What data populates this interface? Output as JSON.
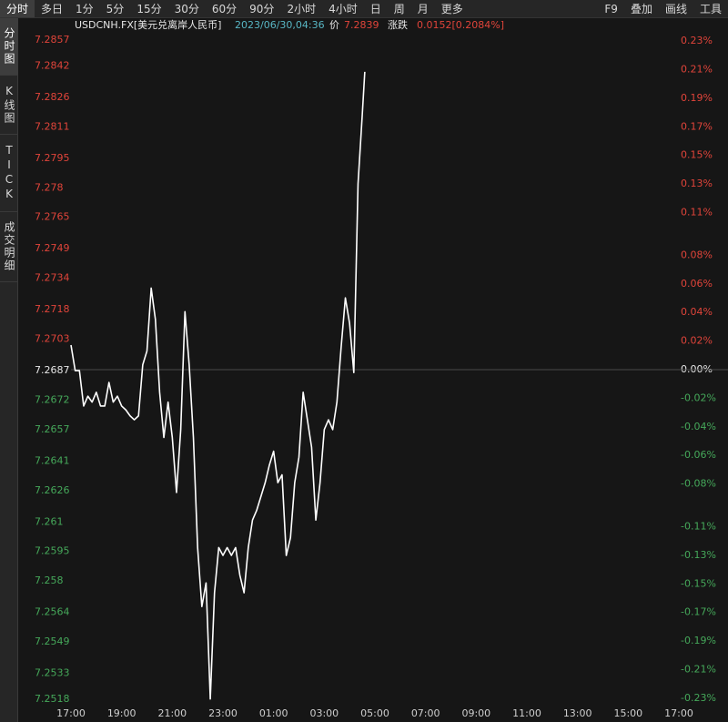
{
  "toolbar": {
    "tabs": [
      "分时",
      "多日",
      "1分",
      "5分",
      "15分",
      "30分",
      "60分",
      "90分",
      "2小时",
      "4小时",
      "日",
      "周",
      "月",
      "更多"
    ],
    "selected": 0,
    "tools": [
      "F9",
      "叠加",
      "画线",
      "工具"
    ]
  },
  "sidebar": {
    "tabs": [
      "分时图",
      "K线图",
      "TICK",
      "成交明细"
    ],
    "selected": 0
  },
  "header": {
    "symbol": "USDCNH.FX[美元兑离岸人民币]",
    "datetime": "2023/06/30,04:36",
    "price_label": "价",
    "price": "7.2839",
    "change_label": "涨跌",
    "change": "0.0152[0.2084%]"
  },
  "chart_data": {
    "type": "line",
    "x": [
      "17:00",
      "17:10",
      "17:20",
      "17:30",
      "17:40",
      "17:50",
      "18:00",
      "18:10",
      "18:20",
      "18:30",
      "18:40",
      "18:50",
      "19:00",
      "19:10",
      "19:20",
      "19:30",
      "19:40",
      "19:50",
      "20:00",
      "20:10",
      "20:20",
      "20:30",
      "20:40",
      "20:50",
      "21:00",
      "21:10",
      "21:20",
      "21:30",
      "21:40",
      "21:50",
      "22:00",
      "22:10",
      "22:20",
      "22:30",
      "22:40",
      "22:50",
      "23:00",
      "23:10",
      "23:20",
      "23:30",
      "23:40",
      "23:50",
      "00:00",
      "00:10",
      "00:20",
      "00:30",
      "00:40",
      "00:50",
      "01:00",
      "01:10",
      "01:20",
      "01:30",
      "01:40",
      "01:50",
      "02:00",
      "02:10",
      "02:20",
      "02:30",
      "02:40",
      "02:50",
      "03:00",
      "03:10",
      "03:20",
      "03:30",
      "03:40",
      "03:50",
      "04:00",
      "04:10",
      "04:20",
      "04:30",
      "04:36"
    ],
    "series": [
      {
        "color": "#ffffff",
        "values": [
          7.27,
          7.2687,
          7.2687,
          7.2669,
          7.2674,
          7.2671,
          7.2676,
          7.2669,
          7.2669,
          7.2681,
          7.2671,
          7.2674,
          7.2669,
          7.2667,
          7.2664,
          7.2662,
          7.2664,
          7.269,
          7.2697,
          7.2729,
          7.2713,
          7.2676,
          7.2653,
          7.2671,
          7.2653,
          7.2625,
          7.2657,
          7.2717,
          7.269,
          7.2653,
          7.2597,
          7.2567,
          7.2579,
          7.252,
          7.2574,
          7.2597,
          7.2593,
          7.2597,
          7.2593,
          7.2597,
          7.2583,
          7.2574,
          7.2597,
          7.2611,
          7.2616,
          7.2623,
          7.263,
          7.2639,
          7.2646,
          7.263,
          7.2634,
          7.2593,
          7.2602,
          7.263,
          7.2643,
          7.2676,
          7.2662,
          7.2648,
          7.2611,
          7.263,
          7.2657,
          7.2662,
          7.2657,
          7.2671,
          7.2699,
          7.2724,
          7.2711,
          7.2686,
          7.2782,
          7.2817,
          7.2839
        ]
      }
    ],
    "xticks": [
      "17:00",
      "19:00",
      "21:00",
      "23:00",
      "01:00",
      "03:00",
      "05:00",
      "07:00",
      "09:00",
      "11:00",
      "13:00",
      "15:00",
      "17:00"
    ],
    "ylim": [
      7.2518,
      7.2857
    ],
    "yticks": [
      7.2857,
      7.2842,
      7.2826,
      7.2811,
      7.2795,
      7.278,
      7.2765,
      7.2749,
      7.2734,
      7.2718,
      7.2703,
      {
        "value": 7.2687,
        "label": "7.2687"
      },
      7.2672,
      7.2657,
      7.2641,
      7.2626,
      7.261,
      7.2595,
      7.258,
      7.2564,
      7.2549,
      7.2533,
      7.2518
    ],
    "y2lim": [
      -0.2333,
      0.2333
    ],
    "y2ticks": [
      {
        "value": 0.23,
        "label": "0.23%"
      },
      {
        "value": 0.21,
        "label": "0.21%"
      },
      {
        "value": 0.19,
        "label": "0.19%"
      },
      {
        "value": 0.17,
        "label": "0.17%"
      },
      {
        "value": 0.15,
        "label": "0.15%"
      },
      {
        "value": 0.13,
        "label": "0.13%"
      },
      {
        "value": 0.11,
        "label": "0.11%"
      },
      {
        "value": 0.08,
        "label": "0.08%"
      },
      {
        "value": 0.06,
        "label": "0.06%"
      },
      {
        "value": 0.04,
        "label": "0.04%"
      },
      {
        "value": 0.02,
        "label": "0.02%"
      },
      {
        "value": 0,
        "label": "0.00%"
      },
      {
        "value": -0.02,
        "label": "-0.02%"
      },
      {
        "value": -0.04,
        "label": "-0.04%"
      },
      {
        "value": -0.06,
        "label": "-0.06%"
      },
      {
        "value": -0.08,
        "label": "-0.08%"
      },
      {
        "value": -0.11,
        "label": "-0.11%"
      },
      {
        "value": -0.13,
        "label": "-0.13%"
      },
      {
        "value": -0.15,
        "label": "-0.15%"
      },
      {
        "value": -0.17,
        "label": "-0.17%"
      },
      {
        "value": -0.19,
        "label": "-0.19%"
      },
      {
        "value": -0.21,
        "label": "-0.21%"
      },
      {
        "value": -0.23,
        "label": "-0.23%"
      }
    ],
    "up_color": "#e0443a",
    "down_color": "#45a85a",
    "flat_color": "#e6e6e6"
  }
}
